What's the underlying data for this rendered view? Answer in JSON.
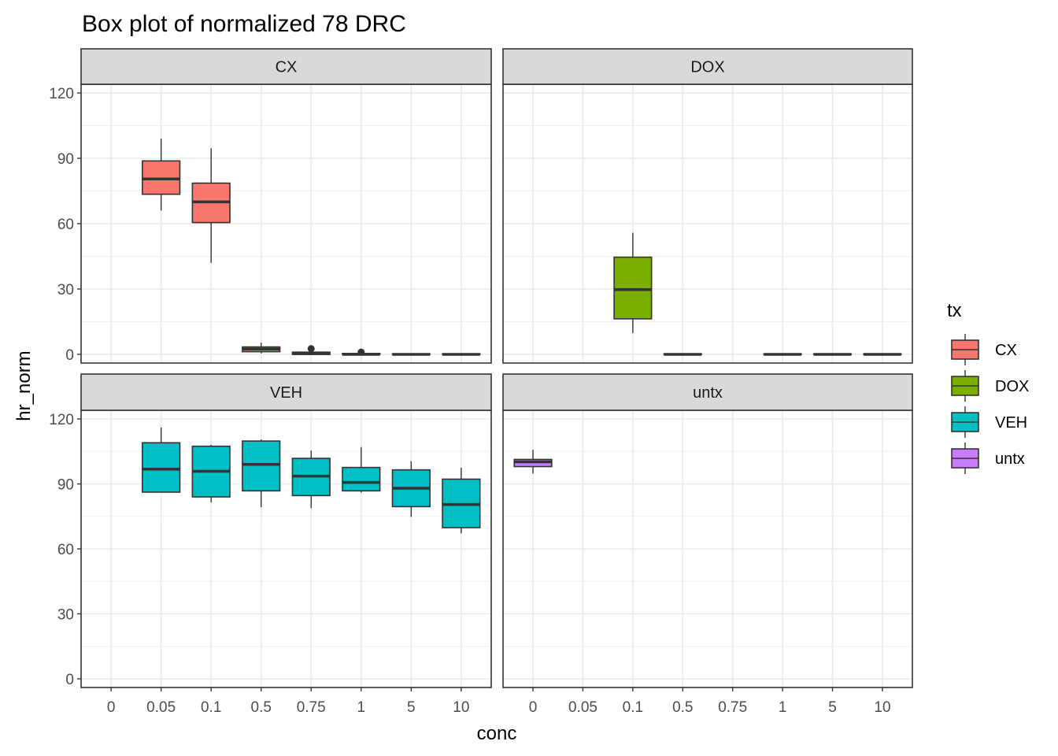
{
  "chart_data": {
    "type": "boxplot",
    "title": "Box plot of normalized 78 DRC",
    "xlabel": "conc",
    "ylabel": "hr_norm",
    "ylim": [
      -4,
      124
    ],
    "yticks": [
      0,
      30,
      60,
      90,
      120
    ],
    "categories": [
      "0",
      "0.05",
      "0.1",
      "0.5",
      "0.75",
      "1",
      "5",
      "10"
    ],
    "grid": true,
    "facets": [
      "CX",
      "DOX",
      "VEH",
      "untx"
    ],
    "legend": {
      "title": "tx",
      "position": "right",
      "entries": [
        {
          "label": "CX",
          "color": "#F8766D"
        },
        {
          "label": "DOX",
          "color": "#7CAE00"
        },
        {
          "label": "VEH",
          "color": "#00BFC4"
        },
        {
          "label": "untx",
          "color": "#C77CFF"
        }
      ]
    },
    "series": [
      {
        "name": "CX",
        "color": "#F8766D",
        "boxes": [
          {
            "conc": "0.05",
            "lower_whisker": 66,
            "q1": 73.5,
            "median": 80.5,
            "q3": 88.8,
            "upper_whisker": 99,
            "outliers": []
          },
          {
            "conc": "0.1",
            "lower_whisker": 42,
            "q1": 60.5,
            "median": 70,
            "q3": 78.6,
            "upper_whisker": 94.6,
            "outliers": []
          },
          {
            "conc": "0.5",
            "lower_whisker": 0.4,
            "q1": 1.2,
            "median": 2.4,
            "q3": 3.4,
            "upper_whisker": 5.4,
            "outliers": []
          },
          {
            "conc": "0.75",
            "lower_whisker": 0,
            "q1": 0,
            "median": 0.3,
            "q3": 1,
            "upper_whisker": 1.2,
            "outliers": [
              2.6
            ]
          },
          {
            "conc": "1",
            "lower_whisker": 0,
            "q1": 0,
            "median": 0,
            "q3": 0.4,
            "upper_whisker": 0.5,
            "outliers": [
              1
            ]
          },
          {
            "conc": "5",
            "lower_whisker": 0,
            "q1": 0,
            "median": 0,
            "q3": 0.2,
            "upper_whisker": 0.2,
            "outliers": []
          },
          {
            "conc": "10",
            "lower_whisker": 0,
            "q1": 0,
            "median": 0,
            "q3": 0.2,
            "upper_whisker": 0.2,
            "outliers": []
          }
        ]
      },
      {
        "name": "DOX",
        "color": "#7CAE00",
        "boxes": [
          {
            "conc": "0.1",
            "lower_whisker": 9.8,
            "q1": 16.3,
            "median": 29.7,
            "q3": 44.6,
            "upper_whisker": 55.8,
            "outliers": []
          },
          {
            "conc": "0.5",
            "lower_whisker": 0,
            "q1": 0,
            "median": 0,
            "q3": 0.2,
            "upper_whisker": 0.2,
            "outliers": []
          },
          {
            "conc": "1",
            "lower_whisker": 0,
            "q1": 0,
            "median": 0,
            "q3": 0.2,
            "upper_whisker": 0.2,
            "outliers": []
          },
          {
            "conc": "5",
            "lower_whisker": 0,
            "q1": 0,
            "median": 0,
            "q3": 0.2,
            "upper_whisker": 0.2,
            "outliers": []
          },
          {
            "conc": "10",
            "lower_whisker": 0,
            "q1": 0,
            "median": 0,
            "q3": 0.2,
            "upper_whisker": 0.2,
            "outliers": []
          }
        ]
      },
      {
        "name": "VEH",
        "color": "#00BFC4",
        "boxes": [
          {
            "conc": "0.05",
            "lower_whisker": 86,
            "q1": 86.2,
            "median": 96.8,
            "q3": 109,
            "upper_whisker": 116,
            "outliers": []
          },
          {
            "conc": "0.1",
            "lower_whisker": 81.5,
            "q1": 84,
            "median": 95.8,
            "q3": 107.4,
            "upper_whisker": 108,
            "outliers": []
          },
          {
            "conc": "0.5",
            "lower_whisker": 79.3,
            "q1": 86.8,
            "median": 99,
            "q3": 109.8,
            "upper_whisker": 110.5,
            "outliers": []
          },
          {
            "conc": "0.75",
            "lower_whisker": 78.8,
            "q1": 84.6,
            "median": 93.6,
            "q3": 101.8,
            "upper_whisker": 105.4,
            "outliers": []
          },
          {
            "conc": "1",
            "lower_whisker": 86,
            "q1": 86.8,
            "median": 90.7,
            "q3": 97.6,
            "upper_whisker": 107,
            "outliers": []
          },
          {
            "conc": "5",
            "lower_whisker": 74.8,
            "q1": 79.5,
            "median": 88,
            "q3": 96.5,
            "upper_whisker": 100.5,
            "outliers": []
          },
          {
            "conc": "10",
            "lower_whisker": 67.2,
            "q1": 69.8,
            "median": 80.5,
            "q3": 92.2,
            "upper_whisker": 97.5,
            "outliers": []
          }
        ]
      },
      {
        "name": "untx",
        "color": "#C77CFF",
        "boxes": [
          {
            "conc": "0",
            "lower_whisker": 94.8,
            "q1": 98,
            "median": 100.2,
            "q3": 101.3,
            "upper_whisker": 105.8,
            "outliers": []
          }
        ]
      }
    ]
  }
}
